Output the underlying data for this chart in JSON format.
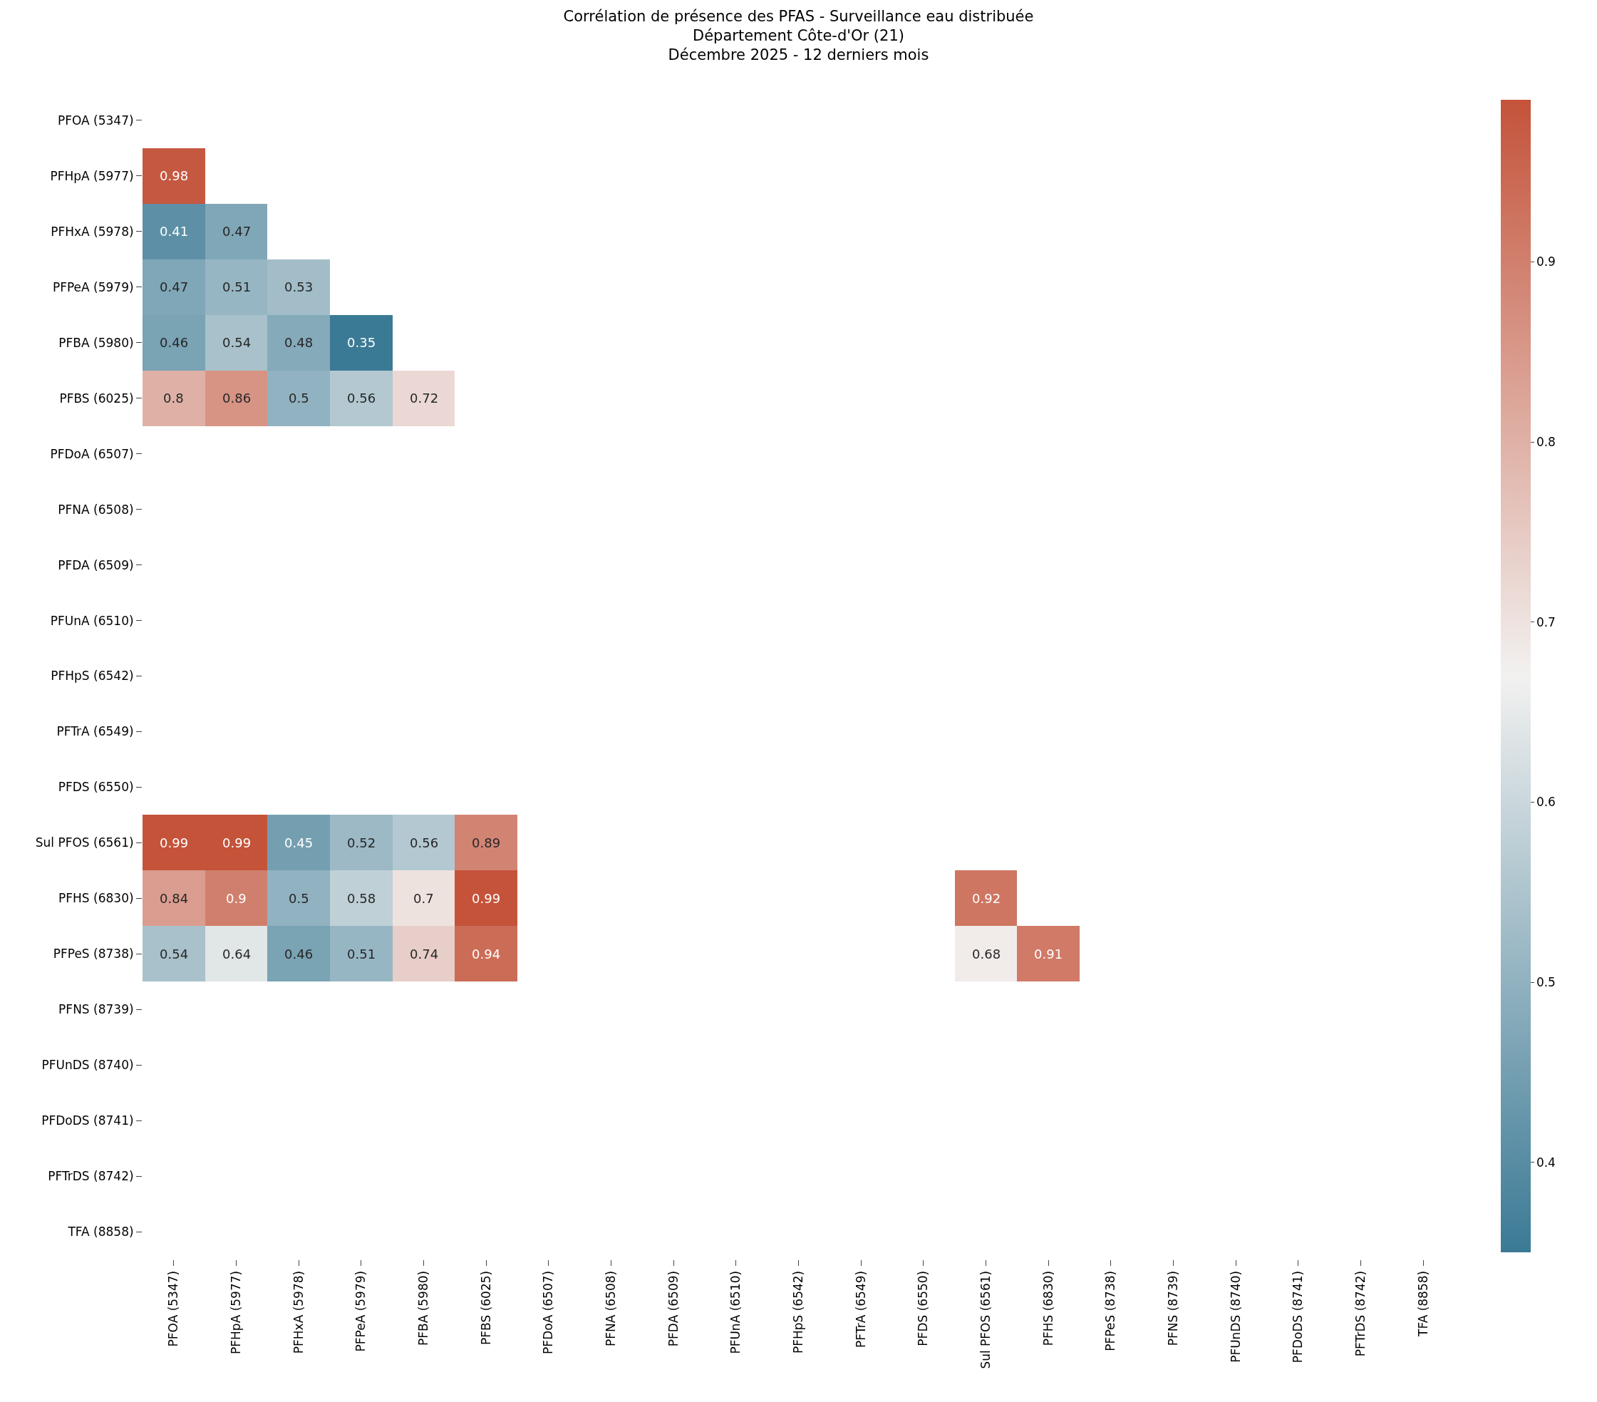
{
  "chart_data": {
    "type": "heatmap",
    "title": "Corrélation de présence des PFAS - Surveillance eau distribuée\nDépartement Côte-d'Or (21)\nDécembre 2025 - 12 derniers mois",
    "categories": [
      "PFOA (5347)",
      "PFHpA (5977)",
      "PFHxA (5978)",
      "PFPeA (5979)",
      "PFBA (5980)",
      "PFBS (6025)",
      "PFDoA (6507)",
      "PFNA (6508)",
      "PFDA (6509)",
      "PFUnA (6510)",
      "PFHpS (6542)",
      "PFTrA (6549)",
      "PFDS (6550)",
      "Sul PFOS (6561)",
      "PFHS (6830)",
      "PFPeS (8738)",
      "PFNS (8739)",
      "PFUnDS (8740)",
      "PFDoDS (8741)",
      "PFTrDS (8742)",
      "TFA (8858)"
    ],
    "y_categories": [
      "PFOA (5347)",
      "PFHpA (5977)",
      "PFHxA (5978)",
      "PFPeA (5979)",
      "PFBA (5980)",
      "PFBS (6025)",
      "PFDoA (6507)",
      "PFNA (6508)",
      "PFDA (6509)",
      "PFUnA (6510)",
      "PFHpS (6542)",
      "PFTrA (6549)",
      "PFDS (6550)",
      "Sul PFOS (6561)",
      "PFHS (6830)",
      "PFPeS (8738)",
      "PFNS (8739)",
      "PFUnDS (8740)",
      "PFDoDS (8741)",
      "PFTrDS (8742)",
      "TFA (8858)"
    ],
    "cells": [
      [
        null,
        null,
        null,
        null,
        null,
        null,
        null,
        null,
        null,
        null,
        null,
        null,
        null,
        null,
        null,
        null,
        null,
        null,
        null,
        null,
        null
      ],
      [
        0.98,
        null,
        null,
        null,
        null,
        null,
        null,
        null,
        null,
        null,
        null,
        null,
        null,
        null,
        null,
        null,
        null,
        null,
        null,
        null,
        null
      ],
      [
        0.41,
        0.47,
        null,
        null,
        null,
        null,
        null,
        null,
        null,
        null,
        null,
        null,
        null,
        null,
        null,
        null,
        null,
        null,
        null,
        null,
        null
      ],
      [
        0.47,
        0.51,
        0.53,
        null,
        null,
        null,
        null,
        null,
        null,
        null,
        null,
        null,
        null,
        null,
        null,
        null,
        null,
        null,
        null,
        null,
        null
      ],
      [
        0.46,
        0.54,
        0.48,
        0.35,
        null,
        null,
        null,
        null,
        null,
        null,
        null,
        null,
        null,
        null,
        null,
        null,
        null,
        null,
        null,
        null,
        null
      ],
      [
        0.8,
        0.86,
        0.5,
        0.56,
        0.72,
        null,
        null,
        null,
        null,
        null,
        null,
        null,
        null,
        null,
        null,
        null,
        null,
        null,
        null,
        null,
        null
      ],
      [
        null,
        null,
        null,
        null,
        null,
        null,
        null,
        null,
        null,
        null,
        null,
        null,
        null,
        null,
        null,
        null,
        null,
        null,
        null,
        null,
        null
      ],
      [
        null,
        null,
        null,
        null,
        null,
        null,
        null,
        null,
        null,
        null,
        null,
        null,
        null,
        null,
        null,
        null,
        null,
        null,
        null,
        null,
        null
      ],
      [
        null,
        null,
        null,
        null,
        null,
        null,
        null,
        null,
        null,
        null,
        null,
        null,
        null,
        null,
        null,
        null,
        null,
        null,
        null,
        null,
        null
      ],
      [
        null,
        null,
        null,
        null,
        null,
        null,
        null,
        null,
        null,
        null,
        null,
        null,
        null,
        null,
        null,
        null,
        null,
        null,
        null,
        null,
        null
      ],
      [
        null,
        null,
        null,
        null,
        null,
        null,
        null,
        null,
        null,
        null,
        null,
        null,
        null,
        null,
        null,
        null,
        null,
        null,
        null,
        null,
        null
      ],
      [
        null,
        null,
        null,
        null,
        null,
        null,
        null,
        null,
        null,
        null,
        null,
        null,
        null,
        null,
        null,
        null,
        null,
        null,
        null,
        null,
        null
      ],
      [
        null,
        null,
        null,
        null,
        null,
        null,
        null,
        null,
        null,
        null,
        null,
        null,
        null,
        null,
        null,
        null,
        null,
        null,
        null,
        null,
        null
      ],
      [
        0.99,
        0.99,
        0.45,
        0.52,
        0.56,
        0.89,
        null,
        null,
        null,
        null,
        null,
        null,
        null,
        null,
        null,
        null,
        null,
        null,
        null,
        null,
        null
      ],
      [
        0.84,
        0.9,
        0.5,
        0.58,
        0.7,
        0.99,
        null,
        null,
        null,
        null,
        null,
        null,
        null,
        0.92,
        null,
        null,
        null,
        null,
        null,
        null,
        null
      ],
      [
        0.54,
        0.64,
        0.46,
        0.51,
        0.74,
        0.94,
        null,
        null,
        null,
        null,
        null,
        null,
        null,
        0.68,
        0.91,
        null,
        null,
        null,
        null,
        null,
        null
      ],
      [
        null,
        null,
        null,
        null,
        null,
        null,
        null,
        null,
        null,
        null,
        null,
        null,
        null,
        null,
        null,
        null,
        null,
        null,
        null,
        null,
        null
      ],
      [
        null,
        null,
        null,
        null,
        null,
        null,
        null,
        null,
        null,
        null,
        null,
        null,
        null,
        null,
        null,
        null,
        null,
        null,
        null,
        null,
        null
      ],
      [
        null,
        null,
        null,
        null,
        null,
        null,
        null,
        null,
        null,
        null,
        null,
        null,
        null,
        null,
        null,
        null,
        null,
        null,
        null,
        null,
        null
      ],
      [
        null,
        null,
        null,
        null,
        null,
        null,
        null,
        null,
        null,
        null,
        null,
        null,
        null,
        null,
        null,
        null,
        null,
        null,
        null,
        null,
        null
      ],
      [
        null,
        null,
        null,
        null,
        null,
        null,
        null,
        null,
        null,
        null,
        null,
        null,
        null,
        null,
        null,
        null,
        null,
        null,
        null,
        null,
        null
      ]
    ],
    "colors": [
      "#3b7a95",
      "#f2f1f0",
      "#c4533a"
    ],
    "clim": [
      0.35,
      0.99
    ],
    "cticks": [
      0.4,
      0.5,
      0.6,
      0.7,
      0.8,
      0.9
    ],
    "data_labels": true
  }
}
